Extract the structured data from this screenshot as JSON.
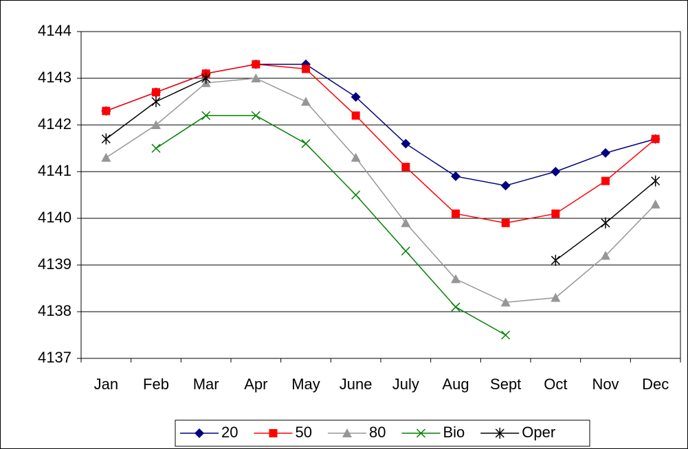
{
  "chart_data": {
    "type": "line",
    "categories": [
      "Jan",
      "Feb",
      "Mar",
      "Apr",
      "May",
      "June",
      "July",
      "Aug",
      "Sept",
      "Oct",
      "Nov",
      "Dec"
    ],
    "series": [
      {
        "name": "20",
        "color": "#000080",
        "marker": "diamond",
        "values": [
          4142.3,
          4142.7,
          4143.1,
          4143.3,
          4143.3,
          4142.6,
          4141.6,
          4140.9,
          4140.7,
          4141.0,
          4141.4,
          4141.7
        ]
      },
      {
        "name": "50",
        "color": "#ff0000",
        "marker": "square",
        "values": [
          4142.3,
          4142.7,
          4143.1,
          4143.3,
          4143.2,
          4142.2,
          4141.1,
          4140.1,
          4139.9,
          4140.1,
          4140.8,
          4141.7
        ]
      },
      {
        "name": "80",
        "color": "#969696",
        "marker": "triangle",
        "values": [
          4141.3,
          4142.0,
          4142.9,
          4143.0,
          4142.5,
          4141.3,
          4139.9,
          4138.7,
          4138.2,
          4138.3,
          4139.2,
          4140.3
        ]
      },
      {
        "name": "Bio",
        "color": "#008000",
        "marker": "x",
        "values": [
          null,
          4141.5,
          4142.2,
          4142.2,
          4141.6,
          4140.5,
          4139.3,
          4138.1,
          4137.5,
          null,
          null,
          null
        ]
      },
      {
        "name": "Oper",
        "color": "#000000",
        "marker": "star",
        "values": [
          4141.7,
          4142.5,
          4143.0,
          null,
          null,
          null,
          null,
          null,
          null,
          4139.1,
          4139.9,
          4140.8
        ]
      }
    ],
    "ylim": [
      4137,
      4144
    ],
    "yticks": [
      4137,
      4138,
      4139,
      4140,
      4141,
      4142,
      4143,
      4144
    ],
    "grid": true,
    "legend": "bottom"
  }
}
